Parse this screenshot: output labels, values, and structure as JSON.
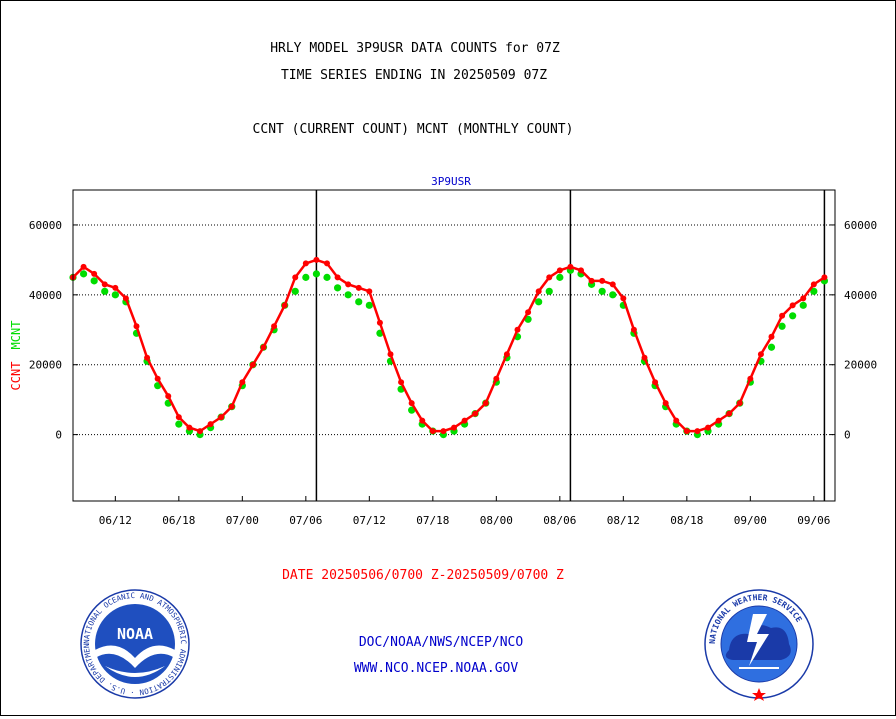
{
  "header": {
    "title_line1": "HRLY MODEL 3P9USR DATA COUNTS for 07Z",
    "title_line2": "TIME SERIES ENDING IN 20250509 07Z",
    "subtitle": "CCNT (CURRENT COUNT) MCNT (MONTHLY COUNT)"
  },
  "footer": {
    "date_range": "DATE 20250506/0700 Z-20250509/0700 Z",
    "org_path": "DOC/NOAA/NWS/NCEP/NCO",
    "website": "WWW.NCO.NCEP.NOAA.GOV"
  },
  "logos": {
    "noaa_text": "NOAA",
    "noaa_ring_text": "NATIONAL OCEANIC AND ATMOSPHERIC ADMINISTRATION · U.S. DEPARTMENT OF COMMERCE ·",
    "nws_ring_text": "NATIONAL WEATHER SERVICE"
  },
  "colors": {
    "ccnt": "#ff0000",
    "mcnt": "#00dd00",
    "panel_title": "#0000cc",
    "footer_blue": "#0000cc",
    "footer_red": "#ff0000"
  },
  "chart_data": {
    "type": "line",
    "panel_title": "3P9USR",
    "ylabel_ccnt": "CCNT",
    "ylabel_mcnt": "MCNT",
    "ylim": [
      -19000,
      70000
    ],
    "yticks": [
      0,
      20000,
      40000,
      60000
    ],
    "ytick_labels": [
      "0",
      "20000",
      "40000",
      "60000"
    ],
    "xlim": [
      0,
      72
    ],
    "xticks": [
      {
        "x": 4,
        "label": "06/12"
      },
      {
        "x": 10,
        "label": "06/18"
      },
      {
        "x": 16,
        "label": "07/00"
      },
      {
        "x": 22,
        "label": "07/06"
      },
      {
        "x": 28,
        "label": "07/12"
      },
      {
        "x": 34,
        "label": "07/18"
      },
      {
        "x": 40,
        "label": "08/00"
      },
      {
        "x": 46,
        "label": "08/06"
      },
      {
        "x": 52,
        "label": "08/12"
      },
      {
        "x": 58,
        "label": "08/18"
      },
      {
        "x": 64,
        "label": "09/00"
      },
      {
        "x": 70,
        "label": "09/06"
      }
    ],
    "day_boundaries": [
      23,
      47,
      71
    ],
    "grid": "horizontal dotted",
    "series": [
      {
        "name": "CCNT",
        "values": [
          45000,
          48000,
          46000,
          43000,
          42000,
          39000,
          31000,
          22000,
          16000,
          11000,
          5000,
          2000,
          1000,
          3000,
          5000,
          8000,
          15000,
          20000,
          25000,
          31000,
          37000,
          45000,
          49000,
          50000,
          49000,
          45000,
          43000,
          42000,
          41000,
          32000,
          23000,
          15000,
          9000,
          4000,
          1000,
          1000,
          2000,
          4000,
          6000,
          9000,
          16000,
          23000,
          30000,
          35000,
          41000,
          45000,
          47000,
          48000,
          47000,
          44000,
          44000,
          43000,
          39000,
          30000,
          22000,
          15000,
          9000,
          4000,
          1000,
          1000,
          2000,
          4000,
          6000,
          9000,
          16000,
          23000,
          28000,
          34000,
          37000,
          39000,
          43000,
          45000
        ]
      },
      {
        "name": "MCNT",
        "values": [
          45000,
          46000,
          44000,
          41000,
          40000,
          38000,
          29000,
          21000,
          14000,
          9000,
          3000,
          1000,
          0,
          2000,
          5000,
          8000,
          14000,
          20000,
          25000,
          30000,
          37000,
          41000,
          45000,
          46000,
          45000,
          42000,
          40000,
          38000,
          37000,
          29000,
          21000,
          13000,
          7000,
          3000,
          1000,
          0,
          1000,
          3000,
          6000,
          9000,
          15000,
          22000,
          28000,
          33000,
          38000,
          41000,
          45000,
          47000,
          46000,
          43000,
          41000,
          40000,
          37000,
          29000,
          21000,
          14000,
          8000,
          3000,
          1000,
          0,
          1000,
          3000,
          6000,
          9000,
          15000,
          21000,
          25000,
          31000,
          34000,
          37000,
          41000,
          44000
        ]
      }
    ]
  }
}
